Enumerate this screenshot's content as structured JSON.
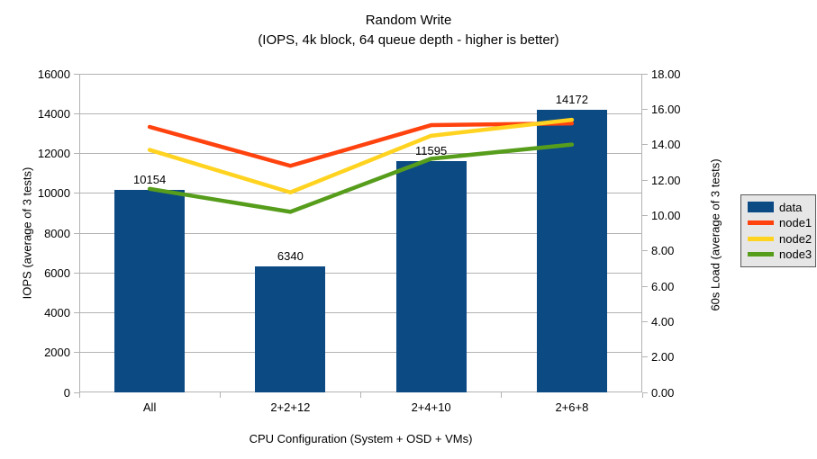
{
  "chart_data": {
    "type": "bar",
    "title": "Random Write",
    "subtitle": "(IOPS, 4k block, 64 queue depth - higher is better)",
    "categories": [
      "All",
      "2+2+12",
      "2+4+10",
      "2+6+8"
    ],
    "bar_series": {
      "name": "data",
      "axis": "left",
      "color": "#0c4a84",
      "values": [
        10154,
        6340,
        11595,
        14172
      ],
      "data_labels": [
        "10154",
        "6340",
        "11595",
        "14172"
      ]
    },
    "line_series": [
      {
        "name": "node1",
        "axis": "right",
        "color": "#ff420e",
        "values": [
          15.0,
          12.8,
          15.1,
          15.2
        ]
      },
      {
        "name": "node2",
        "axis": "right",
        "color": "#ffd320",
        "values": [
          13.7,
          11.3,
          14.5,
          15.4
        ]
      },
      {
        "name": "node3",
        "axis": "right",
        "color": "#579d1c",
        "values": [
          11.5,
          10.2,
          13.2,
          14.0
        ]
      }
    ],
    "left_axis": {
      "label": "IOPS (average of 3 tests)",
      "min": 0,
      "max": 16000,
      "step": 2000
    },
    "right_axis": {
      "label": "60s Load (average of 3 tests)",
      "min": 0,
      "max": 18,
      "step": 2,
      "decimals": 2
    },
    "x_axis": {
      "label": "CPU Configuration (System + OSD + VMs)"
    },
    "legend": {
      "position": "right",
      "entries": [
        "data",
        "node1",
        "node2",
        "node3"
      ]
    },
    "grid": true,
    "colors": {
      "gridline": "#b3b3b3",
      "axis_line": "#b3b3b3",
      "text": "#000000",
      "legend_background": "#e6e6e6",
      "legend_border": "#595959",
      "plot_background": "#ffffff"
    }
  }
}
